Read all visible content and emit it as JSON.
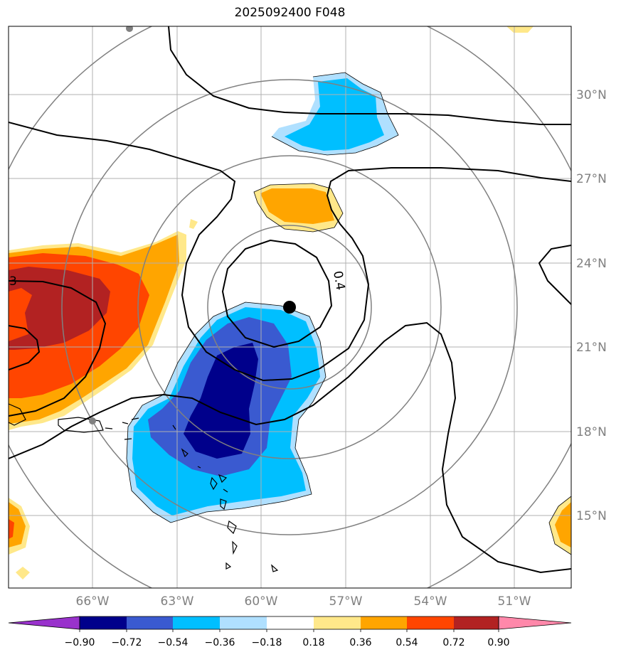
{
  "title": "2025092400 F048",
  "map": {
    "lon_labels": [
      "66°W",
      "63°W",
      "60°W",
      "57°W",
      "54°W",
      "51°W"
    ],
    "lat_labels": [
      "30°N",
      "27°N",
      "24°N",
      "21°N",
      "18°N",
      "15°N"
    ],
    "gridline_color": "#b0b0b0",
    "contour_labels": [
      "0.4",
      "3"
    ],
    "storm_center_marker": "black-dot",
    "range_rings_color": "#808080"
  },
  "colorbar": {
    "tick_labels": [
      "−0.90",
      "−0.72",
      "−0.54",
      "−0.36",
      "−0.18",
      "0.18",
      "0.36",
      "0.54",
      "0.72",
      "0.90"
    ],
    "colors": [
      "#9932cc",
      "#00008b",
      "#3a5ad0",
      "#00bfff",
      "#b0e0ff",
      "#ffffff",
      "#ffe88a",
      "#ffa500",
      "#ff4500",
      "#b22222",
      "#ff88aa"
    ]
  }
}
